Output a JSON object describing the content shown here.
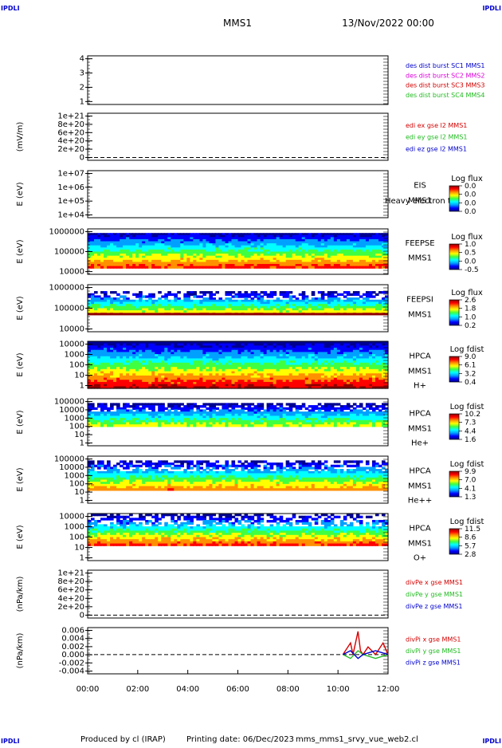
{
  "header": {
    "brand_left": "IPDLI",
    "brand_right": "IPDLI",
    "mission": "MMS1",
    "datetime": "13/Nov/2022 00:00"
  },
  "footer": {
    "brand_left": "IPDLI",
    "brand_right": "IPDLI",
    "produced": "Produced by cl (IRAP)",
    "printing": "Printing date: 06/Dec/2023",
    "filename": "mms_mms1_srvy_vue_web2.cl"
  },
  "colors": {
    "red": "#d40000",
    "green": "#22bb22",
    "blue": "#0000cc",
    "magenta": "#dd00dd",
    "colormap": [
      "#000090",
      "#0000ff",
      "#00a0ff",
      "#00ffff",
      "#40ff40",
      "#ffff00",
      "#ff9000",
      "#ff0000",
      "#900000"
    ]
  },
  "chart_data": [
    {
      "type": "line",
      "id": "p1",
      "yticks": [
        "4",
        "3",
        "2",
        "1"
      ],
      "legend": [
        {
          "text": "des dist burst SC1 MMS1",
          "color": "#0000cc"
        },
        {
          "text": "des dist burst SC2 MMS2",
          "color": "#dd00dd"
        },
        {
          "text": "des dist burst SC3 MMS3",
          "color": "#d40000"
        },
        {
          "text": "des dist burst SC4 MMS4",
          "color": "#22bb22"
        }
      ]
    },
    {
      "type": "line",
      "id": "p2",
      "ylabel": "(mV/m)",
      "yticks": [
        "1e+21",
        "8e+20",
        "6e+20",
        "4e+20",
        "2e+20",
        "0"
      ],
      "zero_line": true,
      "legend": [
        {
          "text": "edi ex gse l2 MMS1",
          "color": "#d40000"
        },
        {
          "text": "edi ey gse l2 MMS1",
          "color": "#22bb22"
        },
        {
          "text": "edi ez gse l2 MMS1",
          "color": "#0000cc"
        }
      ]
    },
    {
      "type": "heatmap",
      "id": "p3",
      "ylabel": "E (eV)",
      "yticks": [
        "1e+07",
        "1e+06",
        "1e+05",
        "1e+04"
      ],
      "labels": [
        "EIS",
        "MMS1"
      ],
      "overlay": "Heavy electron to",
      "cbar_title": "Log flux",
      "cbar_ticks": [
        "0.0",
        "0.0",
        "0.0",
        "0.0"
      ],
      "heat": null
    },
    {
      "type": "heatmap",
      "id": "p4",
      "ylabel": "E (eV)",
      "yticks": [
        "1000000",
        "100000",
        "10000"
      ],
      "labels": [
        "FEEPSE",
        "MMS1"
      ],
      "cbar_title": "Log flux",
      "cbar_ticks": [
        "1.0",
        "0.5",
        "0.0",
        "-0.5"
      ],
      "heat": {
        "band_top": 0.08,
        "band_bottom": 0.82,
        "low": 0.02,
        "high": 0.85,
        "sparse": 0.0
      }
    },
    {
      "type": "heatmap",
      "id": "p5",
      "ylabel": "E (eV)",
      "yticks": [
        "1000000",
        "100000",
        "10000"
      ],
      "labels": [
        "FEEPSI",
        "MMS1"
      ],
      "cbar_title": "Log flux",
      "cbar_ticks": [
        "2.6",
        "1.8",
        "1.0",
        "0.2"
      ],
      "heat": {
        "band_top": 0.12,
        "band_bottom": 0.62,
        "low": 0.0,
        "high": 0.72,
        "sparse": 0.45,
        "bottom_line": 0.6
      }
    },
    {
      "type": "heatmap",
      "id": "p6",
      "ylabel": "E (eV)",
      "yticks": [
        "10000",
        "1000",
        "100",
        "10",
        "1"
      ],
      "labels": [
        "HPCA",
        "MMS1",
        "H+"
      ],
      "cbar_title": "Log fdist",
      "cbar_ticks": [
        "9.0",
        "6.1",
        "3.2",
        "0.4"
      ],
      "heat": {
        "band_top": 0.0,
        "band_bottom": 1.0,
        "low": 0.0,
        "high": 1.0,
        "sparse": 0.0
      }
    },
    {
      "type": "heatmap",
      "id": "p7",
      "ylabel": "E (eV)",
      "yticks": [
        "100000",
        "10000",
        "1000",
        "100",
        "10",
        "1"
      ],
      "labels": [
        "HPCA",
        "MMS1",
        "He+"
      ],
      "cbar_title": "Log fdist",
      "cbar_ticks": [
        "10.2",
        "7.3",
        "4.4",
        "1.6"
      ],
      "heat": {
        "band_top": 0.08,
        "band_bottom": 0.55,
        "low": 0.0,
        "high": 0.6,
        "sparse": 0.3
      }
    },
    {
      "type": "heatmap",
      "id": "p8",
      "ylabel": "E (eV)",
      "yticks": [
        "100000",
        "10000",
        "1000",
        "100",
        "10",
        "1"
      ],
      "labels": [
        "HPCA",
        "MMS1",
        "He++"
      ],
      "cbar_title": "Log fdist",
      "cbar_ticks": [
        "9.9",
        "7.0",
        "4.1",
        "1.3"
      ],
      "heat": {
        "band_top": 0.06,
        "band_bottom": 0.72,
        "low": 0.0,
        "high": 0.8,
        "sparse": 0.35
      }
    },
    {
      "type": "heatmap",
      "id": "p9",
      "ylabel": "E (eV)",
      "yticks": [
        "10000",
        "1000",
        "100",
        "10",
        "1"
      ],
      "labels": [
        "HPCA",
        "MMS1",
        "O+"
      ],
      "cbar_title": "Log fdist",
      "cbar_ticks": [
        "11.5",
        "8.6",
        "5.7",
        "2.8"
      ],
      "heat": {
        "band_top": 0.0,
        "band_bottom": 0.65,
        "low": 0.0,
        "high": 0.85,
        "sparse": 0.45
      }
    },
    {
      "type": "line",
      "id": "p10",
      "ylabel": "(nPa/km)",
      "yticks": [
        "1e+21",
        "8e+20",
        "6e+20",
        "4e+20",
        "2e+20",
        "0"
      ],
      "zero_line": true,
      "legend": [
        {
          "text": "divPe x gse MMS1",
          "color": "#d40000"
        },
        {
          "text": "divPe y gse MMS1",
          "color": "#22bb22"
        },
        {
          "text": "divPe z gse MMS1",
          "color": "#0000cc"
        }
      ]
    },
    {
      "type": "line",
      "id": "p11",
      "ylabel": "(nPa/km)",
      "yticks": [
        "0.006",
        "0.004",
        "0.002",
        "0.000",
        "-0.002",
        "-0.004"
      ],
      "ylim": [
        -0.005,
        0.007
      ],
      "zero_line": true,
      "legend": [
        {
          "text": "divPi x gse MMS1",
          "color": "#d40000"
        },
        {
          "text": "divPi y gse MMS1",
          "color": "#22bb22"
        },
        {
          "text": "divPi z gse MMS1",
          "color": "#0000cc"
        }
      ],
      "series": [
        {
          "name": "divPi x gse MMS1",
          "color": "#d40000",
          "x": [
            10.2,
            10.5,
            10.6,
            10.8,
            10.9,
            11.0,
            11.2,
            11.5,
            11.8,
            12.0
          ],
          "y": [
            0.0,
            0.003,
            0.0,
            0.006,
            0.001,
            0.0,
            0.002,
            0.0,
            0.003,
            0.0
          ]
        },
        {
          "name": "divPi y gse MMS1",
          "color": "#22bb22",
          "x": [
            10.2,
            10.5,
            10.8,
            11.0,
            11.5,
            12.0
          ],
          "y": [
            0.0,
            -0.001,
            0.001,
            0.0,
            -0.001,
            0.0
          ]
        },
        {
          "name": "divPi z gse MMS1",
          "color": "#0000cc",
          "x": [
            10.2,
            10.5,
            10.8,
            11.0,
            11.5,
            12.0
          ],
          "y": [
            0.0,
            0.001,
            -0.001,
            0.0,
            0.001,
            0.0
          ]
        }
      ]
    }
  ],
  "xaxis": {
    "ticks": [
      "00:00",
      "02:00",
      "04:00",
      "06:00",
      "08:00",
      "10:00",
      "12:00"
    ],
    "range_hours": [
      0,
      12
    ]
  }
}
